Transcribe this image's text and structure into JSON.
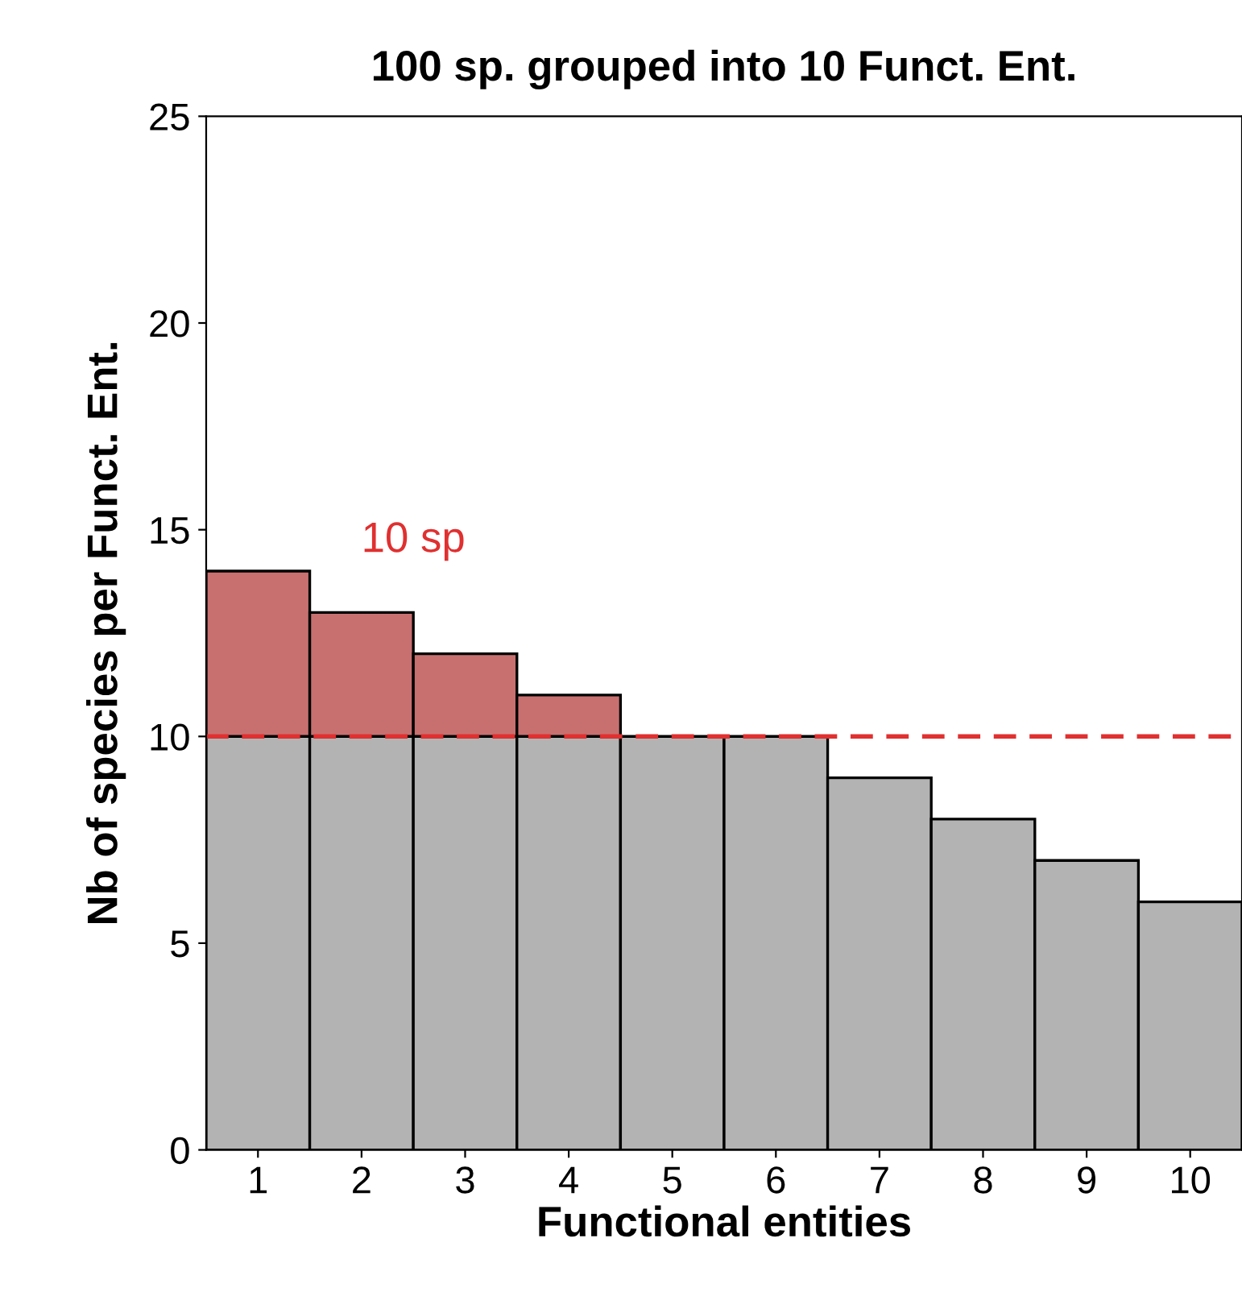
{
  "chart_data": {
    "type": "bar",
    "title": "100 sp. grouped into 10 Funct. Ent.",
    "xlabel": "Functional entities",
    "ylabel": "Nb of species per Funct. Ent.",
    "categories": [
      "1",
      "2",
      "3",
      "4",
      "5",
      "6",
      "7",
      "8",
      "9",
      "10"
    ],
    "stacked": true,
    "series": [
      {
        "color": "#b3b3b3",
        "values": [
          10,
          10,
          10,
          10,
          10,
          10,
          9,
          8,
          7,
          6
        ]
      },
      {
        "color": "#c87070",
        "values": [
          4,
          3,
          2,
          1,
          null,
          null,
          null,
          null,
          null,
          null
        ]
      }
    ],
    "ylim": [
      0,
      25
    ],
    "yticks": [
      0,
      5,
      10,
      15,
      20,
      25
    ],
    "ref_lines": [
      {
        "axis": "y",
        "value": 10,
        "label": null,
        "color": "#e03030",
        "line_style": "dashed"
      }
    ],
    "annotations": [
      "10 sp"
    ],
    "grid": false,
    "legend": false
  }
}
